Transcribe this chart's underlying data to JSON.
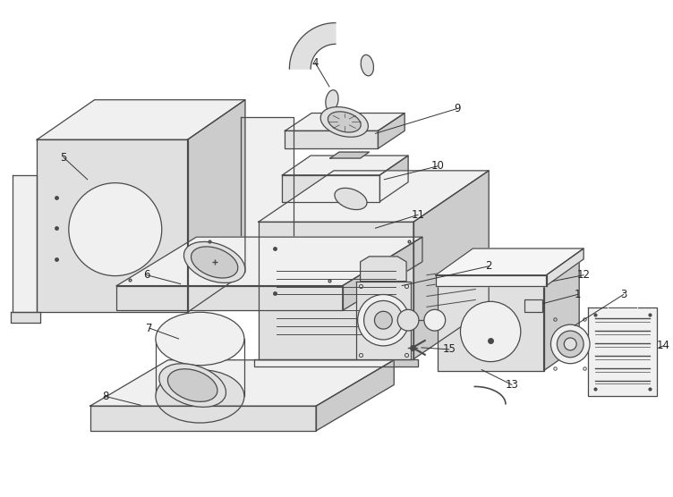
{
  "bg_color": "#ffffff",
  "line_color": "#4a4a4a",
  "fill_light": "#f0f0f0",
  "fill_mid": "#e0e0e0",
  "fill_dark": "#cccccc",
  "fig_width": 7.52,
  "fig_height": 5.56,
  "dpi": 100
}
